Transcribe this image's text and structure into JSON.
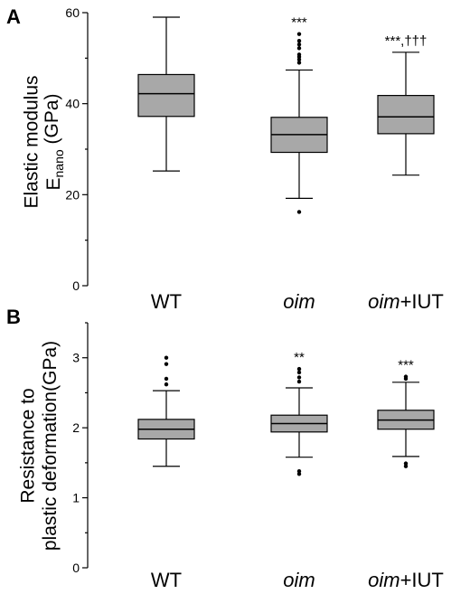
{
  "chart_data": [
    {
      "type": "box",
      "panel": "A",
      "ylabel": "Elastic modulus",
      "ylabel_line2": "E",
      "ylabel_sub": "nano",
      "ylabel_unit": "(GPa)",
      "ylim": [
        0,
        60
      ],
      "yticks": [
        "0",
        "20",
        "40",
        "60"
      ],
      "categories": [
        {
          "plain": "WT",
          "italic": "",
          "suffix": ""
        },
        {
          "plain": "",
          "italic": "oim",
          "suffix": ""
        },
        {
          "plain": "",
          "italic": "oim",
          "suffix": "+IUT"
        }
      ],
      "boxes": [
        {
          "min": 25.2,
          "q1": 37.2,
          "median": 42.2,
          "q3": 46.4,
          "max": 59.0,
          "outliers": [],
          "sig": ""
        },
        {
          "min": 19.2,
          "q1": 29.3,
          "median": 33.2,
          "q3": 37.0,
          "max": 47.4,
          "outliers": [
            16.2,
            49.0,
            49.7,
            50.3,
            50.8,
            52.2,
            53.0,
            53.8,
            55.3
          ],
          "sig": "***"
        },
        {
          "min": 24.3,
          "q1": 33.4,
          "median": 37.1,
          "q3": 41.8,
          "max": 51.3,
          "outliers": [],
          "sig": "***,†††"
        }
      ]
    },
    {
      "type": "box",
      "panel": "B",
      "ylabel": "Resistance to",
      "ylabel_line2": "plastic deformation",
      "ylabel_sub": "",
      "ylabel_unit": "(GPa)",
      "ylim": [
        0,
        3.5
      ],
      "yticks": [
        "0",
        "1",
        "2",
        "3"
      ],
      "categories": [
        {
          "plain": "WT",
          "italic": "",
          "suffix": ""
        },
        {
          "plain": "",
          "italic": "oim",
          "suffix": ""
        },
        {
          "plain": "",
          "italic": "oim",
          "suffix": "+IUT"
        }
      ],
      "boxes": [
        {
          "min": 1.45,
          "q1": 1.84,
          "median": 1.98,
          "q3": 2.12,
          "max": 2.53,
          "outliers": [
            2.62,
            2.7,
            2.91,
            3.0
          ],
          "sig": ""
        },
        {
          "min": 1.58,
          "q1": 1.94,
          "median": 2.06,
          "q3": 2.18,
          "max": 2.57,
          "outliers": [
            1.34,
            1.38,
            2.66,
            2.72,
            2.79,
            2.84
          ],
          "sig": "**"
        },
        {
          "min": 1.59,
          "q1": 1.98,
          "median": 2.11,
          "q3": 2.25,
          "max": 2.65,
          "outliers": [
            1.45,
            1.49,
            2.7,
            2.73
          ],
          "sig": "***"
        }
      ]
    }
  ]
}
